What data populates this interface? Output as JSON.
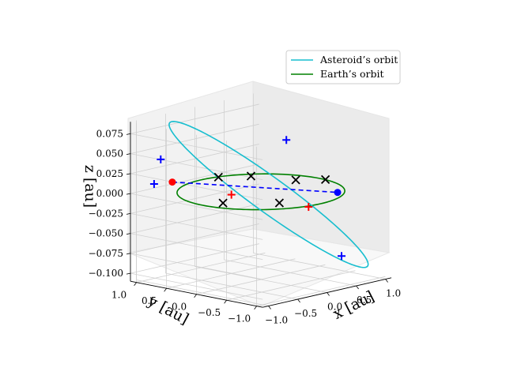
{
  "chart_data": {
    "type": "3d-line-scatter",
    "axes": {
      "x": {
        "label": "x [au]",
        "ticks": [
          -1.0,
          -0.5,
          0.0,
          0.5,
          1.0
        ],
        "tick_labels": [
          "−1.0",
          "−0.5",
          "0.0",
          "0.5",
          "1.0"
        ],
        "lim": [
          -1.1,
          1.1
        ]
      },
      "y": {
        "label": "y [au]",
        "ticks": [
          -1.0,
          -0.5,
          0.0,
          0.5,
          1.0
        ],
        "tick_labels": [
          "−1.0",
          "−0.5",
          "0.0",
          "0.5",
          "1.0"
        ],
        "lim": [
          -1.1,
          1.1
        ]
      },
      "z": {
        "label": "z [au]",
        "ticks": [
          -0.1,
          -0.075,
          -0.05,
          -0.025,
          0.0,
          0.025,
          0.05,
          0.075
        ],
        "tick_labels": [
          "−0.100",
          "−0.075",
          "−0.050",
          "−0.025",
          "0.000",
          "0.025",
          "0.050",
          "0.075"
        ],
        "lim": [
          -0.11,
          0.09
        ]
      }
    },
    "grid": true,
    "legend": {
      "placement": "upper right",
      "entries": [
        "Asteroid’s orbit",
        "Earth’s orbit"
      ]
    },
    "series": [
      {
        "name": "Asteroid’s orbit",
        "kind": "ellipse",
        "color": "#17becf",
        "a": 1.2,
        "e": 0.15,
        "incl_deg": 5,
        "node_deg": 75,
        "peri_deg": 0
      },
      {
        "name": "Earth’s orbit",
        "kind": "circle",
        "color": "#008000",
        "radius": 1.0
      }
    ],
    "markers": {
      "red_dot": {
        "color": "#ff0000",
        "x": -0.95,
        "y": 0.55,
        "z": 0.02
      },
      "blue_dot": {
        "color": "#0000ff",
        "x": 0.9,
        "y": -0.4,
        "z": -0.01
      },
      "blue_plus": [
        {
          "x": -1.25,
          "y": 0.45,
          "z": 0.055
        },
        {
          "x": -0.85,
          "y": 0.95,
          "z": 0.01
        },
        {
          "x": 1.0,
          "y": 0.55,
          "z": 0.04
        },
        {
          "x": 0.3,
          "y": -1.05,
          "z": -0.07
        }
      ],
      "red_plus": [
        {
          "x": -0.35,
          "y": 0.15,
          "z": 0.0
        },
        {
          "x": 0.25,
          "y": -0.55,
          "z": -0.015
        }
      ],
      "black_x": [
        {
          "x": -0.75,
          "y": -0.1,
          "z": 0.0
        },
        {
          "x": -0.3,
          "y": -0.6,
          "z": 0.0
        },
        {
          "x": 0.55,
          "y": 0.7,
          "z": 0.0
        },
        {
          "x": 0.25,
          "y": 0.95,
          "z": 0.0
        },
        {
          "x": 0.75,
          "y": 0.15,
          "z": 0.0
        },
        {
          "x": 1.0,
          "y": -0.1,
          "z": 0.0
        }
      ]
    },
    "connector": {
      "style": "dashed",
      "color": "#0000ff",
      "from": "red_dot",
      "to": "blue_dot"
    }
  }
}
